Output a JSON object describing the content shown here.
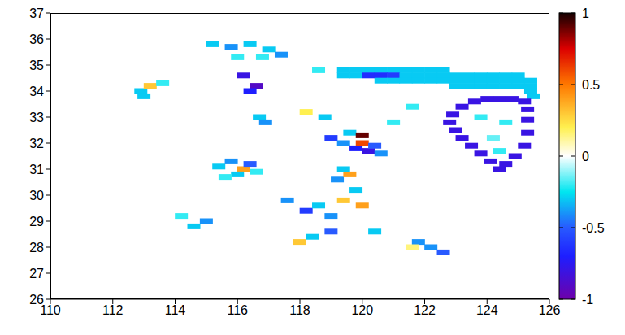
{
  "chart_data": {
    "type": "heatmap",
    "xlim": [
      110,
      126
    ],
    "xticks": [
      110,
      112,
      114,
      116,
      118,
      120,
      122,
      124,
      126
    ],
    "ylim": [
      26,
      37
    ],
    "yticks": [
      26,
      27,
      28,
      29,
      30,
      31,
      32,
      33,
      34,
      35,
      36,
      37
    ],
    "colorbar": {
      "range": [
        -1,
        1
      ],
      "ticks": [
        -1,
        -0.5,
        0,
        0.5,
        1
      ]
    },
    "points": [
      [
        119.4,
        34.8,
        -0.3
      ],
      [
        119.8,
        34.8,
        -0.3
      ],
      [
        120.2,
        34.8,
        -0.3
      ],
      [
        120.6,
        34.8,
        -0.3
      ],
      [
        121.0,
        34.8,
        -0.3
      ],
      [
        121.4,
        34.8,
        -0.3
      ],
      [
        121.8,
        34.8,
        -0.3
      ],
      [
        122.2,
        34.8,
        -0.3
      ],
      [
        122.6,
        34.8,
        -0.3
      ],
      [
        119.4,
        34.6,
        -0.3
      ],
      [
        119.8,
        34.6,
        -0.3
      ],
      [
        120.2,
        34.6,
        -0.65
      ],
      [
        120.6,
        34.6,
        -0.65
      ],
      [
        121.0,
        34.6,
        -0.6
      ],
      [
        121.4,
        34.6,
        -0.3
      ],
      [
        121.8,
        34.6,
        -0.3
      ],
      [
        122.2,
        34.6,
        -0.3
      ],
      [
        122.6,
        34.6,
        -0.3
      ],
      [
        123.0,
        34.6,
        -0.3
      ],
      [
        123.4,
        34.6,
        -0.3
      ],
      [
        123.8,
        34.6,
        -0.3
      ],
      [
        124.2,
        34.6,
        -0.3
      ],
      [
        124.6,
        34.6,
        -0.3
      ],
      [
        125.0,
        34.6,
        -0.3
      ],
      [
        120.6,
        34.4,
        -0.3
      ],
      [
        121.0,
        34.4,
        -0.3
      ],
      [
        121.4,
        34.4,
        -0.3
      ],
      [
        121.8,
        34.4,
        -0.3
      ],
      [
        122.2,
        34.4,
        -0.3
      ],
      [
        122.6,
        34.4,
        -0.3
      ],
      [
        123.0,
        34.4,
        -0.3
      ],
      [
        123.4,
        34.4,
        -0.3
      ],
      [
        123.8,
        34.4,
        -0.3
      ],
      [
        124.2,
        34.4,
        -0.3
      ],
      [
        124.6,
        34.4,
        -0.3
      ],
      [
        125.0,
        34.4,
        -0.3
      ],
      [
        125.4,
        34.4,
        -0.3
      ],
      [
        123.0,
        34.2,
        -0.3
      ],
      [
        123.4,
        34.2,
        -0.3
      ],
      [
        123.8,
        34.2,
        -0.3
      ],
      [
        124.2,
        34.2,
        -0.3
      ],
      [
        124.6,
        34.2,
        -0.3
      ],
      [
        125.0,
        34.2,
        -0.3
      ],
      [
        125.4,
        34.2,
        -0.3
      ],
      [
        125.4,
        34.0,
        -0.3
      ],
      [
        125.5,
        33.8,
        -0.3
      ],
      [
        123.2,
        33.4,
        -0.8
      ],
      [
        123.6,
        33.6,
        -0.8
      ],
      [
        124.0,
        33.7,
        -0.8
      ],
      [
        124.4,
        33.7,
        -0.8
      ],
      [
        124.8,
        33.7,
        -0.8
      ],
      [
        125.2,
        33.6,
        -0.8
      ],
      [
        122.9,
        33.1,
        -0.8
      ],
      [
        122.8,
        32.8,
        -0.8
      ],
      [
        123.0,
        32.5,
        -0.8
      ],
      [
        123.2,
        32.2,
        -0.8
      ],
      [
        123.5,
        31.9,
        -0.8
      ],
      [
        123.8,
        31.6,
        -0.8
      ],
      [
        124.1,
        31.3,
        -0.8
      ],
      [
        124.4,
        31.0,
        -0.8
      ],
      [
        124.6,
        31.2,
        -0.8
      ],
      [
        124.9,
        31.5,
        -0.8
      ],
      [
        125.2,
        31.9,
        -0.8
      ],
      [
        125.3,
        32.4,
        -0.8
      ],
      [
        125.3,
        32.9,
        -0.8
      ],
      [
        125.3,
        33.3,
        -0.8
      ],
      [
        123.8,
        33.0,
        -0.2
      ],
      [
        124.6,
        32.8,
        -0.2
      ],
      [
        124.2,
        32.2,
        -0.15
      ],
      [
        124.4,
        31.7,
        -0.2
      ],
      [
        121.8,
        28.2,
        -0.4
      ],
      [
        122.2,
        28.0,
        -0.4
      ],
      [
        122.6,
        27.8,
        -0.5
      ],
      [
        121.6,
        28.0,
        0.15
      ],
      [
        115.4,
        31.1,
        -0.3
      ],
      [
        115.8,
        31.3,
        -0.4
      ],
      [
        116.2,
        31.0,
        0.4
      ],
      [
        116.4,
        31.2,
        -0.5
      ],
      [
        116.0,
        30.8,
        -0.3
      ],
      [
        116.6,
        30.9,
        -0.2
      ],
      [
        115.6,
        30.7,
        -0.2
      ],
      [
        119.0,
        32.2,
        -0.6
      ],
      [
        119.4,
        32.0,
        -0.4
      ],
      [
        119.8,
        31.8,
        -0.7
      ],
      [
        120.0,
        32.0,
        0.6
      ],
      [
        120.2,
        31.7,
        -0.8
      ],
      [
        120.4,
        31.9,
        -0.5
      ],
      [
        119.6,
        32.4,
        -0.3
      ],
      [
        120.6,
        31.6,
        -0.4
      ],
      [
        120.0,
        32.3,
        0.9
      ],
      [
        115.2,
        35.8,
        -0.3
      ],
      [
        115.8,
        35.7,
        -0.4
      ],
      [
        116.4,
        35.8,
        -0.3
      ],
      [
        117.0,
        35.6,
        -0.3
      ],
      [
        117.4,
        35.4,
        -0.4
      ],
      [
        116.8,
        35.3,
        -0.2
      ],
      [
        116.0,
        35.3,
        -0.2
      ],
      [
        116.6,
        34.2,
        -0.9
      ],
      [
        116.4,
        34.0,
        -0.7
      ],
      [
        116.2,
        34.6,
        -0.8
      ],
      [
        116.7,
        33.0,
        -0.3
      ],
      [
        116.9,
        32.8,
        -0.4
      ],
      [
        112.9,
        34.0,
        -0.3
      ],
      [
        113.2,
        34.2,
        0.3
      ],
      [
        113.6,
        34.3,
        -0.2
      ],
      [
        113.0,
        33.8,
        -0.3
      ],
      [
        117.6,
        29.8,
        -0.4
      ],
      [
        118.2,
        29.4,
        -0.6
      ],
      [
        118.6,
        29.6,
        -0.3
      ],
      [
        119.0,
        29.2,
        -0.4
      ],
      [
        119.4,
        29.8,
        0.3
      ],
      [
        119.2,
        30.6,
        -0.4
      ],
      [
        119.8,
        30.2,
        -0.3
      ],
      [
        118.4,
        28.4,
        -0.3
      ],
      [
        119.0,
        28.6,
        -0.5
      ],
      [
        118.0,
        28.2,
        0.3
      ],
      [
        120.0,
        29.6,
        0.4
      ],
      [
        120.4,
        28.6,
        -0.3
      ],
      [
        115.0,
        29.0,
        -0.4
      ],
      [
        114.6,
        28.8,
        -0.3
      ],
      [
        114.2,
        29.2,
        -0.2
      ],
      [
        118.2,
        33.2,
        0.2
      ],
      [
        118.8,
        33.0,
        -0.3
      ],
      [
        119.6,
        30.8,
        0.4
      ],
      [
        121.0,
        32.8,
        -0.2
      ],
      [
        121.6,
        33.4,
        -0.2
      ],
      [
        118.6,
        34.8,
        -0.2
      ],
      [
        119.4,
        31.0,
        -0.3
      ]
    ]
  }
}
